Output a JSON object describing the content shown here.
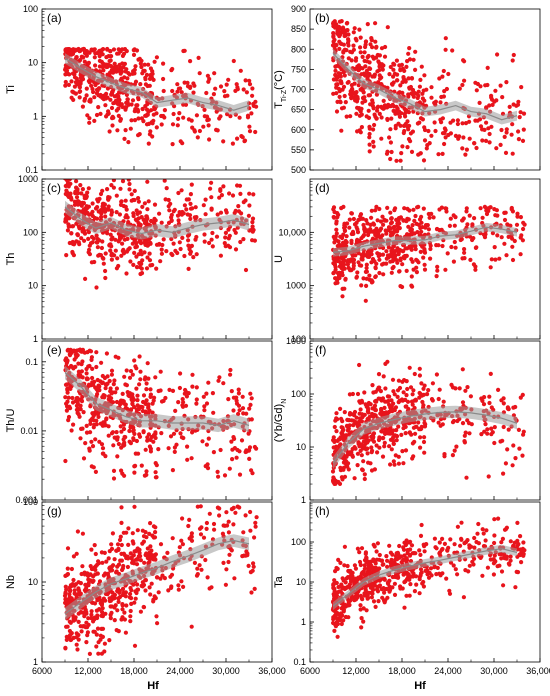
{
  "figure": {
    "x_title": "Hf",
    "x_ticks": [
      6000,
      12000,
      18000,
      24000,
      30000,
      36000
    ],
    "x_tick_labels": [
      "6000",
      "12,000",
      "18,000",
      "24,000",
      "30,000",
      "36,000"
    ],
    "colors": {
      "points": "#e8141c",
      "band": "#9a9a9a",
      "trend": "#8a8a8a"
    }
  },
  "chart_data": [
    {
      "type": "scatter",
      "panel": "(a)",
      "ylabel": "Ti",
      "log": true,
      "xlim": [
        6000,
        36000
      ],
      "ylim": [
        0.1,
        100
      ],
      "yticks": [
        0.1,
        1,
        10,
        100
      ],
      "ytick_labels": [
        "0.1",
        "1",
        "10",
        "100"
      ],
      "trend": {
        "x": [
          9000,
          11000,
          13000,
          15000,
          17000,
          19000,
          21000,
          23000,
          25000,
          27000,
          29000,
          31000,
          33000
        ],
        "y": [
          12,
          8,
          5.5,
          4.2,
          3.3,
          2.8,
          1.8,
          2.0,
          2.2,
          1.8,
          1.6,
          1.3,
          1.6
        ]
      },
      "band_ratio": 1.25,
      "scatter_range": [
        0.3,
        18
      ],
      "spread": 2.8,
      "points": 620
    },
    {
      "type": "scatter",
      "panel": "(b)",
      "ylabel": "T",
      "ylabel_sub": "Ti-Z",
      "ylabel_suffix": "(°C)",
      "log": false,
      "xlim": [
        6000,
        36000
      ],
      "ylim": [
        500,
        900
      ],
      "yticks": [
        500,
        550,
        600,
        650,
        700,
        750,
        800,
        850,
        900
      ],
      "ytick_labels": [
        "500",
        "550",
        "600",
        "650",
        "700",
        "750",
        "800",
        "850",
        "900"
      ],
      "trend": {
        "x": [
          9000,
          11000,
          13000,
          15000,
          17000,
          19000,
          21000,
          23000,
          25000,
          27000,
          29000,
          31000,
          33000
        ],
        "y": [
          790,
          750,
          715,
          700,
          680,
          665,
          645,
          650,
          660,
          645,
          640,
          625,
          635
        ]
      },
      "band_width": 12,
      "scatter_range": [
        515,
        870
      ],
      "spread": 70,
      "points": 620
    },
    {
      "type": "scatter",
      "panel": "(c)",
      "ylabel": "Th",
      "log": true,
      "xlim": [
        6000,
        36000
      ],
      "ylim": [
        1,
        1000
      ],
      "yticks": [
        1,
        10,
        100,
        1000
      ],
      "ytick_labels": [
        "1",
        "10",
        "100",
        "1000"
      ],
      "trend": {
        "x": [
          9000,
          11000,
          13000,
          15000,
          17000,
          19000,
          21000,
          23000,
          25000,
          27000,
          29000,
          31000,
          33000
        ],
        "y": [
          300,
          180,
          120,
          150,
          110,
          95,
          110,
          100,
          120,
          140,
          150,
          170,
          140
        ]
      },
      "band_ratio": 1.3,
      "scatter_range": [
        6,
        1400
      ],
      "spread": 2.6,
      "points": 620
    },
    {
      "type": "scatter",
      "panel": "(d)",
      "ylabel": "U",
      "log": true,
      "xlim": [
        6000,
        36000
      ],
      "ylim": [
        100,
        100000
      ],
      "yticks": [
        100,
        1000,
        10000
      ],
      "ytick_labels": [
        "100",
        "1000",
        "10,000"
      ],
      "trend": {
        "x": [
          9000,
          11000,
          13000,
          15000,
          17000,
          19000,
          21000,
          23000,
          25000,
          27000,
          29000,
          31000,
          33000
        ],
        "y": [
          4200,
          4500,
          5500,
          6200,
          7000,
          7000,
          7200,
          8500,
          9000,
          10500,
          12500,
          11500,
          10000
        ]
      },
      "band_ratio": 1.2,
      "scatter_range": [
        500,
        30000
      ],
      "spread": 2.4,
      "points": 620
    },
    {
      "type": "scatter",
      "panel": "(e)",
      "ylabel": "Th/U",
      "log": true,
      "xlim": [
        6000,
        36000
      ],
      "ylim": [
        0.001,
        0.2
      ],
      "yticks": [
        0.001,
        0.01,
        0.1
      ],
      "ytick_labels": [
        "0.001",
        "0.01",
        "0.1"
      ],
      "trend": {
        "x": [
          9000,
          11000,
          13000,
          15000,
          17000,
          19000,
          21000,
          23000,
          25000,
          27000,
          29000,
          31000,
          33000
        ],
        "y": [
          0.07,
          0.045,
          0.025,
          0.02,
          0.016,
          0.014,
          0.014,
          0.013,
          0.013,
          0.013,
          0.012,
          0.014,
          0.012
        ]
      },
      "band_ratio": 1.25,
      "scatter_range": [
        0.002,
        0.15
      ],
      "spread": 2.6,
      "points": 620
    },
    {
      "type": "scatter",
      "panel": "(f)",
      "ylabel": "(Yb/Gd)",
      "ylabel_sub": "N",
      "log": true,
      "xlim": [
        6000,
        36000
      ],
      "ylim": [
        1,
        1000
      ],
      "yticks": [
        1,
        10,
        100,
        1000
      ],
      "ytick_labels": [
        "1",
        "10",
        "100",
        "1000"
      ],
      "trend": {
        "x": [
          9000,
          11000,
          13000,
          15000,
          17000,
          19000,
          21000,
          23000,
          25000,
          27000,
          29000,
          31000,
          33000
        ],
        "y": [
          5,
          12,
          22,
          28,
          33,
          38,
          42,
          45,
          46,
          44,
          40,
          35,
          28
        ]
      },
      "band_ratio": 1.3,
      "scatter_range": [
        2,
        900
      ],
      "spread": 2.6,
      "points": 620
    },
    {
      "type": "scatter",
      "panel": "(g)",
      "ylabel": "Nb",
      "log": true,
      "xlim": [
        6000,
        36000
      ],
      "ylim": [
        1,
        100
      ],
      "yticks": [
        1,
        10,
        100
      ],
      "ytick_labels": [
        "1",
        "10",
        "100"
      ],
      "trend": {
        "x": [
          9000,
          11000,
          13000,
          15000,
          17000,
          19000,
          21000,
          23000,
          25000,
          27000,
          29000,
          31000,
          33000
        ],
        "y": [
          4,
          5.5,
          7.5,
          9.5,
          11,
          13,
          15,
          18,
          21,
          25,
          30,
          33,
          30
        ]
      },
      "band_ratio": 1.2,
      "scatter_range": [
        1.2,
        90
      ],
      "spread": 2.2,
      "points": 620
    },
    {
      "type": "scatter",
      "panel": "(h)",
      "ylabel": "Ta",
      "log": true,
      "xlim": [
        6000,
        36000
      ],
      "ylim": [
        0.1,
        1000
      ],
      "yticks": [
        0.1,
        1,
        10,
        100
      ],
      "ytick_labels": [
        "0.1",
        "1",
        "10",
        "100"
      ],
      "trend": {
        "x": [
          9000,
          11000,
          13000,
          15000,
          17000,
          19000,
          21000,
          23000,
          25000,
          27000,
          29000,
          31000,
          33000
        ],
        "y": [
          2.5,
          5,
          10,
          15,
          20,
          25,
          30,
          35,
          42,
          50,
          60,
          68,
          55
        ]
      },
      "band_ratio": 1.25,
      "scatter_range": [
        0.4,
        400
      ],
      "spread": 2.6,
      "points": 620
    }
  ]
}
